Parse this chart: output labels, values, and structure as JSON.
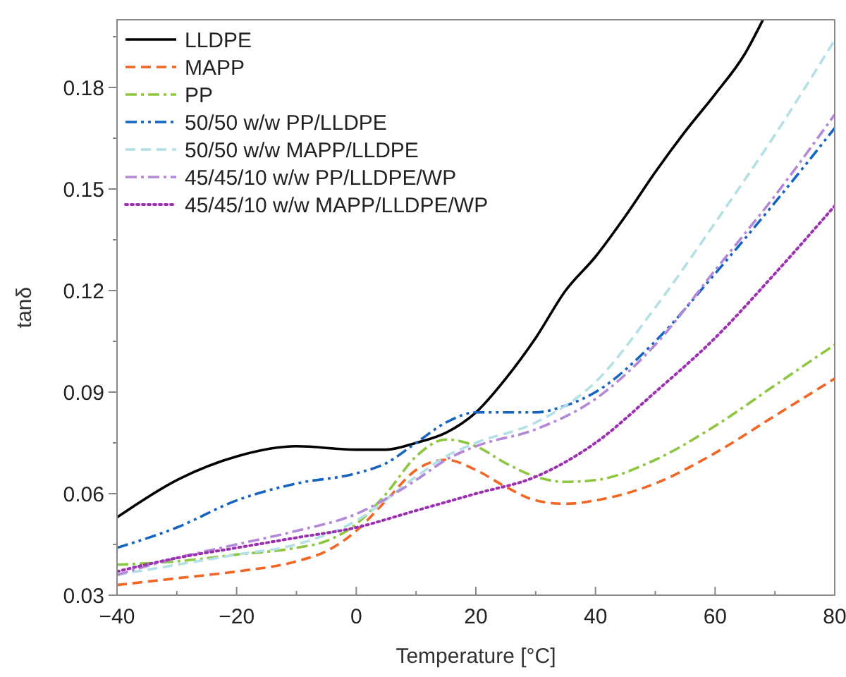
{
  "chart_data": {
    "type": "line",
    "xlabel": "Temperature [°C]",
    "ylabel": "tanδ",
    "xlim": [
      -40,
      80
    ],
    "ylim": [
      0.03,
      0.2
    ],
    "xticks": [
      -40,
      {
        "value": -30,
        "label": null
      },
      -20,
      {
        "value": -10,
        "label": null
      },
      0,
      {
        "value": 10,
        "label": null
      },
      20,
      {
        "value": 30,
        "label": null
      },
      40,
      {
        "value": 50,
        "label": null
      },
      60,
      {
        "value": 70,
        "label": null
      },
      80
    ],
    "yticks": [
      0.03,
      {
        "value": 0.045,
        "label": null
      },
      0.06,
      {
        "value": 0.075,
        "label": null
      },
      0.09,
      {
        "value": 0.105,
        "label": null
      },
      0.12,
      {
        "value": 0.135,
        "label": null
      },
      0.15,
      {
        "value": 0.165,
        "label": null
      },
      0.18,
      {
        "value": 0.195,
        "label": null
      }
    ],
    "grid": false,
    "legend": "top left",
    "marker": "none",
    "series": [
      {
        "name": "LLDPE",
        "color": "#000000",
        "line_style": "solid",
        "x": [
          -40,
          -30,
          -20,
          -10,
          0,
          5,
          10,
          15,
          20,
          25,
          30,
          35,
          40,
          45,
          50,
          55,
          60,
          65,
          68
        ],
        "values": [
          0.053,
          0.064,
          0.071,
          0.074,
          0.073,
          0.073,
          0.075,
          0.078,
          0.084,
          0.094,
          0.106,
          0.12,
          0.13,
          0.142,
          0.155,
          0.167,
          0.178,
          0.19,
          0.2
        ]
      },
      {
        "name": "MAPP",
        "color": "#f26522",
        "line_style": "dashed",
        "x": [
          -40,
          -30,
          -20,
          -10,
          -5,
          0,
          5,
          10,
          15,
          20,
          25,
          30,
          35,
          40,
          50,
          60,
          70,
          80
        ],
        "values": [
          0.033,
          0.035,
          0.037,
          0.04,
          0.043,
          0.049,
          0.058,
          0.067,
          0.07,
          0.067,
          0.062,
          0.058,
          0.057,
          0.058,
          0.063,
          0.072,
          0.083,
          0.094
        ]
      },
      {
        "name": "PP",
        "color": "#8dc63f",
        "line_style": "dashdot",
        "x": [
          -40,
          -30,
          -20,
          -10,
          -5,
          0,
          5,
          10,
          15,
          20,
          25,
          30,
          35,
          40,
          50,
          60,
          70,
          80
        ],
        "values": [
          0.039,
          0.04,
          0.042,
          0.044,
          0.046,
          0.051,
          0.06,
          0.071,
          0.076,
          0.074,
          0.069,
          0.065,
          0.0635,
          0.064,
          0.07,
          0.08,
          0.092,
          0.104
        ]
      },
      {
        "name": "50/50 w/w PP/LLDPE",
        "color": "#1565c0",
        "line_style": "dashdotdot",
        "x": [
          -40,
          -30,
          -20,
          -10,
          0,
          5,
          10,
          15,
          20,
          30,
          35,
          40,
          50,
          60,
          70,
          80
        ],
        "values": [
          0.044,
          0.05,
          0.058,
          0.063,
          0.066,
          0.069,
          0.075,
          0.081,
          0.084,
          0.084,
          0.086,
          0.09,
          0.105,
          0.125,
          0.146,
          0.168
        ]
      },
      {
        "name": "50/50 w/w MAPP/LLDPE",
        "color": "#b3e0e6",
        "line_style": "dashed",
        "x": [
          -40,
          -30,
          -20,
          -10,
          0,
          10,
          15,
          20,
          30,
          40,
          50,
          60,
          70,
          80
        ],
        "values": [
          0.036,
          0.039,
          0.042,
          0.045,
          0.052,
          0.065,
          0.071,
          0.075,
          0.081,
          0.093,
          0.115,
          0.14,
          0.166,
          0.194
        ]
      },
      {
        "name": "45/45/10 w/w PP/LLDPE/WP",
        "color": "#b388d9",
        "line_style": "dashdot",
        "x": [
          -40,
          -30,
          -20,
          -10,
          0,
          10,
          15,
          20,
          30,
          40,
          50,
          60,
          70,
          80
        ],
        "values": [
          0.036,
          0.041,
          0.045,
          0.049,
          0.054,
          0.064,
          0.07,
          0.074,
          0.079,
          0.088,
          0.104,
          0.126,
          0.148,
          0.172
        ]
      },
      {
        "name": "45/45/10 w/w MAPP/LLDPE/WP",
        "color": "#9b30b0",
        "line_style": "dotted",
        "x": [
          -40,
          -30,
          -20,
          -10,
          0,
          10,
          20,
          30,
          40,
          50,
          60,
          70,
          80
        ],
        "values": [
          0.037,
          0.041,
          0.044,
          0.047,
          0.05,
          0.055,
          0.06,
          0.065,
          0.075,
          0.09,
          0.106,
          0.125,
          0.145
        ]
      }
    ]
  }
}
